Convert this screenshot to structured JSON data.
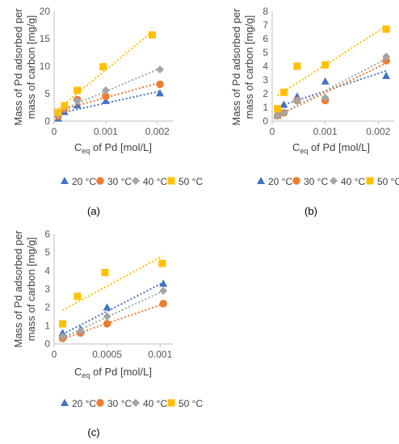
{
  "figure": {
    "panel_labels": [
      "(a)",
      "(b)",
      "(c)"
    ]
  },
  "chart_data": [
    {
      "type": "scatter",
      "panel": "(a)",
      "xlabel": "C_eq of Pd [mol/L]",
      "ylabel": "Mass of Pd adsorbed per mass of carbon [mg/g]",
      "xlim": [
        0,
        0.0023
      ],
      "ylim": [
        0,
        20
      ],
      "xticks": [
        0,
        0.001,
        0.002
      ],
      "xtick_labels": [
        "0",
        "0.001",
        "0.002"
      ],
      "yticks": [
        0,
        5,
        10,
        15,
        20
      ],
      "ytick_labels": [
        "0",
        "5",
        "10",
        "15",
        "20"
      ],
      "grid": false,
      "trendlines": true,
      "legend_position": "bottom",
      "series": [
        {
          "name": "20 °C",
          "color": "#4472C4",
          "marker": "triangle",
          "x": [
            8e-05,
            0.0002,
            0.00045,
            0.001,
            0.00205
          ],
          "y": [
            0.5,
            1.7,
            2.9,
            3.7,
            5.1
          ]
        },
        {
          "name": "30 °C",
          "color": "#ED7D31",
          "marker": "circle",
          "x": [
            8e-05,
            0.0002,
            0.00045,
            0.001,
            0.00205
          ],
          "y": [
            0.9,
            2.2,
            3.9,
            4.5,
            6.7
          ]
        },
        {
          "name": "40 °C",
          "color": "#A5A5A5",
          "marker": "diamond",
          "x": [
            8e-05,
            0.0002,
            0.00045,
            0.001,
            0.00205
          ],
          "y": [
            1.1,
            2.4,
            3.7,
            5.6,
            9.4
          ]
        },
        {
          "name": "50 °C",
          "color": "#FFC000",
          "marker": "square",
          "x": [
            8e-05,
            0.0002,
            0.00045,
            0.00095,
            0.0019
          ],
          "y": [
            1.6,
            2.8,
            5.6,
            9.9,
            15.7
          ]
        }
      ]
    },
    {
      "type": "scatter",
      "panel": "(b)",
      "xlabel": "C_eq of Pd [mol/L]",
      "ylabel": "Mass of Pd adsorbed per mass of carbon [mg/g]",
      "xlim": [
        0,
        0.0023
      ],
      "ylim": [
        0,
        8
      ],
      "xticks": [
        0,
        0.001,
        0.002
      ],
      "xtick_labels": [
        "0",
        "0.001",
        "0.002"
      ],
      "yticks": [
        0,
        1,
        2,
        3,
        4,
        5,
        6,
        7,
        8
      ],
      "ytick_labels": [
        "0",
        "1",
        "2",
        "3",
        "4",
        "5",
        "6",
        "7",
        "8"
      ],
      "grid": false,
      "trendlines": true,
      "legend_position": "bottom",
      "series": [
        {
          "name": "20 °C",
          "color": "#4472C4",
          "marker": "triangle",
          "x": [
            0.0001,
            0.00022,
            0.00047,
            0.001,
            0.00215
          ],
          "y": [
            0.4,
            1.2,
            1.8,
            2.9,
            3.3
          ]
        },
        {
          "name": "30 °C",
          "color": "#ED7D31",
          "marker": "circle",
          "x": [
            0.0001,
            0.00022,
            0.00047,
            0.001,
            0.00215
          ],
          "y": [
            0.4,
            0.6,
            1.5,
            1.5,
            4.4
          ]
        },
        {
          "name": "40 °C",
          "color": "#A5A5A5",
          "marker": "diamond",
          "x": [
            0.0001,
            0.00022,
            0.00047,
            0.001,
            0.00215
          ],
          "y": [
            0.4,
            0.6,
            1.5,
            1.7,
            4.7
          ]
        },
        {
          "name": "50 °C",
          "color": "#FFC000",
          "marker": "square",
          "x": [
            0.0001,
            0.00022,
            0.00047,
            0.001,
            0.00215
          ],
          "y": [
            0.9,
            2.1,
            4.0,
            4.1,
            6.7
          ]
        }
      ]
    },
    {
      "type": "scatter",
      "panel": "(c)",
      "xlabel": "C_eq of Pd [mol/L]",
      "ylabel": "Mass of Pd adsorbed per mass of carbon [mg/g]",
      "xlim": [
        0,
        0.00112
      ],
      "ylim": [
        0,
        6
      ],
      "xticks": [
        0,
        0.0005,
        0.001
      ],
      "xtick_labels": [
        "0",
        "0.0005",
        "0.001"
      ],
      "yticks": [
        0,
        1,
        2,
        3,
        4,
        5,
        6
      ],
      "ytick_labels": [
        "0",
        "1",
        "2",
        "3",
        "4",
        "5",
        "6"
      ],
      "grid": false,
      "trendlines": true,
      "legend_position": "bottom",
      "series": [
        {
          "name": "20 °C",
          "color": "#4472C4",
          "marker": "triangle",
          "x": [
            8e-05,
            0.00025,
            0.0005,
            0.00103
          ],
          "y": [
            0.6,
            0.8,
            2.0,
            3.3
          ]
        },
        {
          "name": "30 °C",
          "color": "#ED7D31",
          "marker": "circle",
          "x": [
            8e-05,
            0.00025,
            0.0005,
            0.00103
          ],
          "y": [
            0.3,
            0.6,
            1.1,
            2.2
          ]
        },
        {
          "name": "40 °C",
          "color": "#A5A5A5",
          "marker": "diamond",
          "x": [
            8e-05,
            0.00025,
            0.0005,
            0.00103
          ],
          "y": [
            0.4,
            0.7,
            1.5,
            2.9
          ]
        },
        {
          "name": "50 °C",
          "color": "#FFC000",
          "marker": "square",
          "x": [
            8e-05,
            0.00022,
            0.00048,
            0.00102
          ],
          "y": [
            1.1,
            2.6,
            3.9,
            4.4
          ]
        }
      ]
    }
  ]
}
